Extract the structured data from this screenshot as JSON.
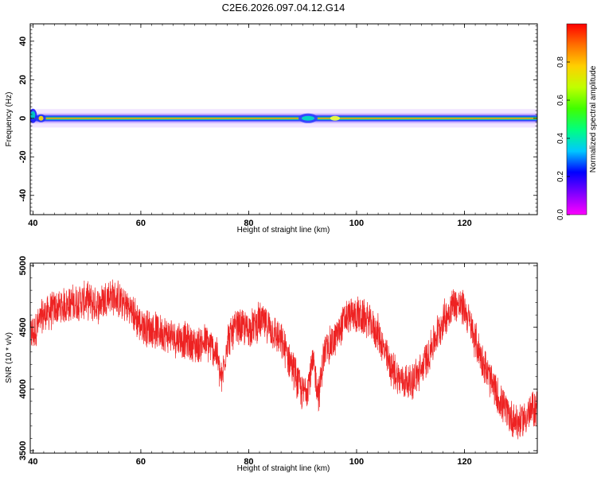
{
  "figure": {
    "title": "C2E6.2026.097.04.12.G14"
  },
  "colors": {
    "snr_line": "#ee2222",
    "axis": "#000000",
    "colormap": [
      "#ff00ff",
      "#8000ff",
      "#0000ff",
      "#00c8ff",
      "#00ff80",
      "#40ff00",
      "#c0ff00",
      "#ffd000",
      "#ff7000",
      "#ff0000"
    ]
  },
  "chart_data": [
    {
      "type": "heatmap",
      "name": "spectrogram",
      "xlabel": "Height of straight line (km)",
      "ylabel": "Frequency (Hz)",
      "xlim": [
        39.5,
        133.5
      ],
      "ylim": [
        -50,
        49
      ],
      "xticks": [
        40,
        60,
        80,
        100,
        120
      ],
      "yticks": [
        -40,
        -20,
        0,
        20,
        40
      ],
      "colorbar": {
        "label": "Normalized spectral amplitude",
        "range": [
          0,
          1
        ],
        "ticks": [
          0.0,
          0.2,
          0.4,
          0.6,
          0.8
        ]
      },
      "ridge": {
        "frequency_hz": 0,
        "x_start_km": 39.5,
        "x_end_km": 133.5,
        "core_half_width_hz": 0.5,
        "spread_half_width_hz": 3,
        "notes_features_km": [
          40,
          41.5,
          91,
          96
        ]
      }
    },
    {
      "type": "line",
      "name": "snr",
      "xlabel": "Height of straight line (km)",
      "ylabel": "SNR (10 * v/v)",
      "xlim": [
        39.5,
        133.5
      ],
      "ylim": [
        3480,
        5020
      ],
      "xticks": [
        40,
        60,
        80,
        100,
        120
      ],
      "yticks": [
        3500,
        4000,
        4500,
        5000
      ],
      "series": [
        {
          "x": [
            40,
            42,
            44,
            46,
            48,
            50,
            52,
            54,
            56,
            58,
            60,
            62,
            64,
            66,
            68,
            70,
            72,
            74,
            75,
            76,
            78,
            80,
            82,
            84,
            86,
            88,
            90,
            91,
            92,
            93,
            94,
            96,
            98,
            100,
            102,
            104,
            106,
            108,
            110,
            112,
            114,
            116,
            118,
            120,
            122,
            124,
            126,
            128,
            130,
            132,
            133
          ],
          "y": [
            4450,
            4600,
            4650,
            4680,
            4700,
            4720,
            4680,
            4760,
            4720,
            4650,
            4520,
            4480,
            4460,
            4420,
            4400,
            4350,
            4380,
            4300,
            4050,
            4400,
            4500,
            4480,
            4550,
            4500,
            4380,
            4200,
            3950,
            4050,
            4200,
            3950,
            4300,
            4400,
            4580,
            4600,
            4560,
            4450,
            4200,
            4080,
            4050,
            4150,
            4350,
            4550,
            4700,
            4650,
            4400,
            4150,
            3950,
            3800,
            3720,
            3800,
            3850
          ]
        }
      ]
    }
  ]
}
